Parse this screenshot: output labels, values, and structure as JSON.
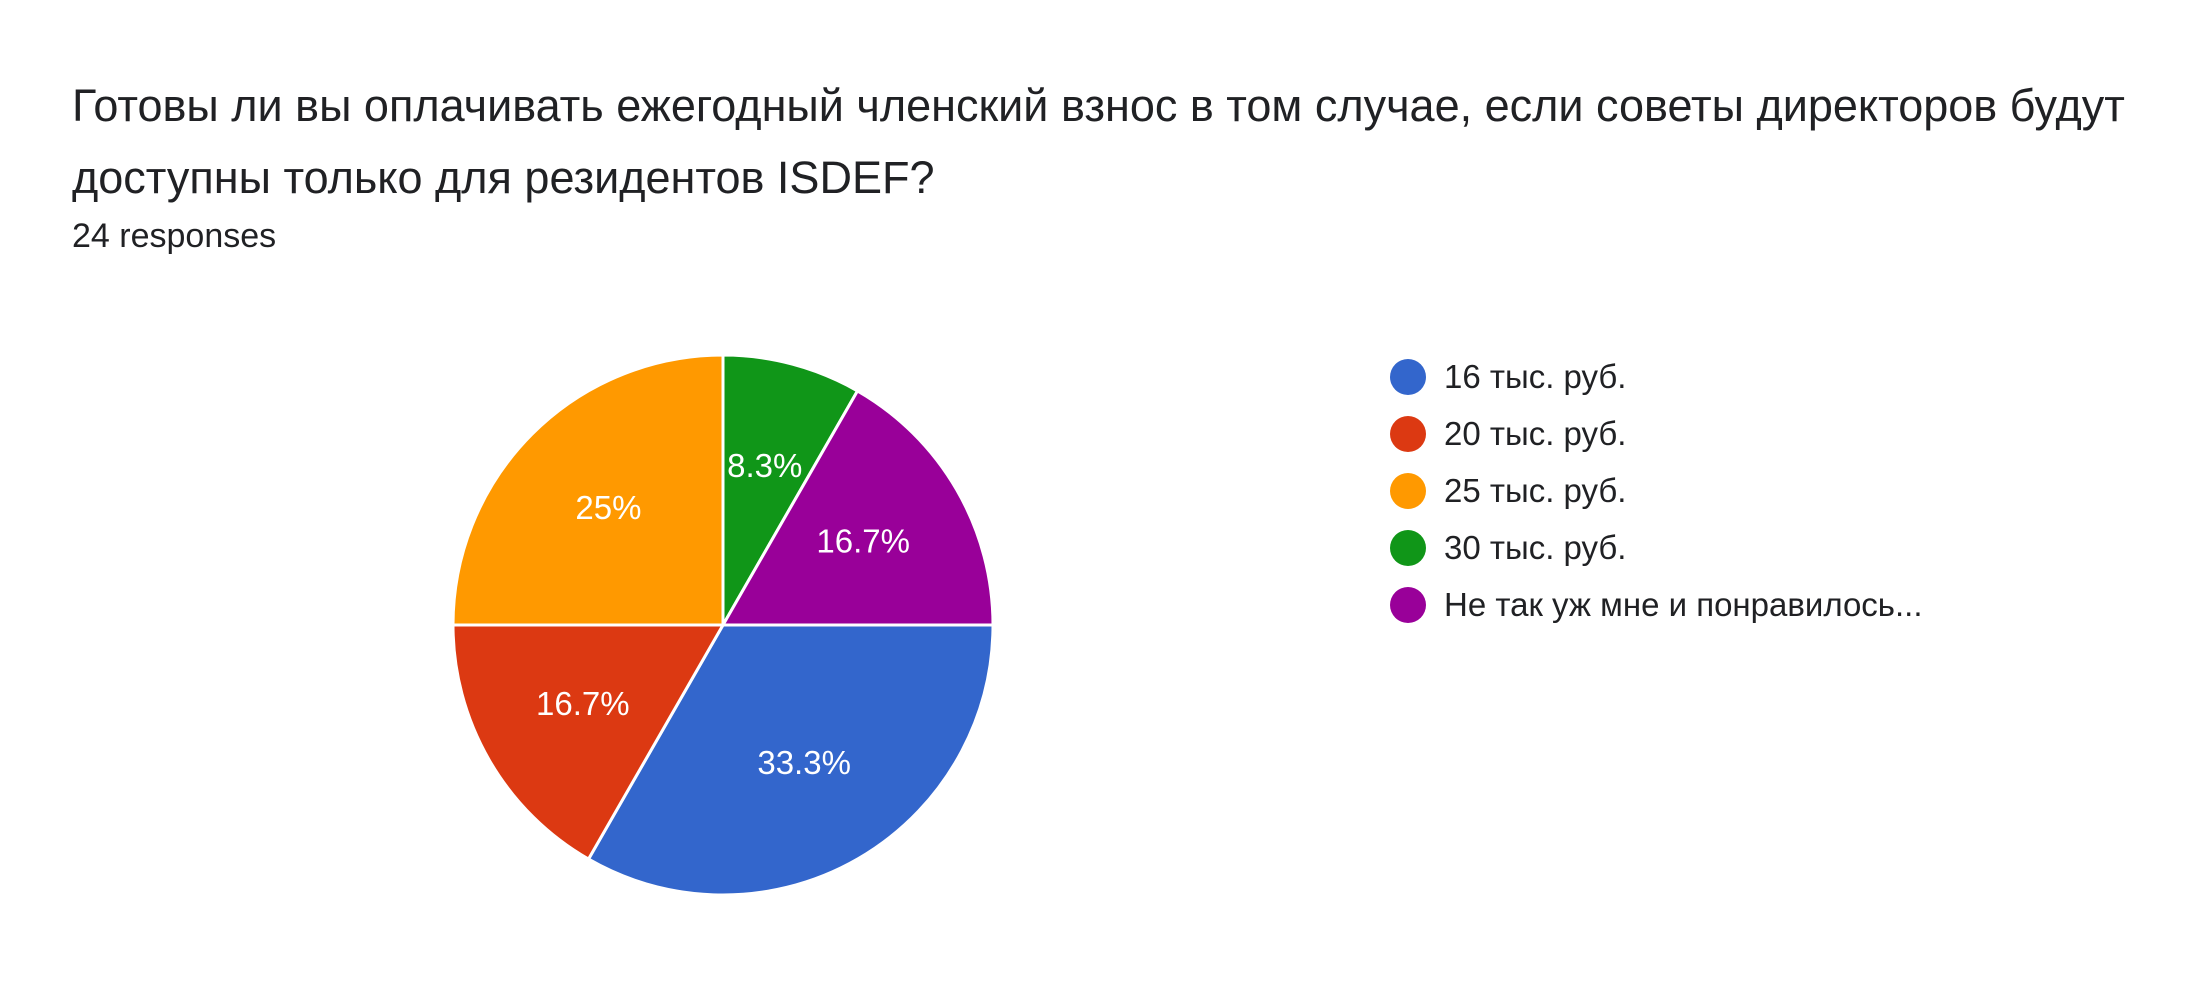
{
  "colors": {
    "blue": "#3366CC",
    "red": "#DC3912",
    "orange": "#FF9900",
    "green": "#109618",
    "purple": "#990099"
  },
  "chart_data": {
    "type": "pie",
    "title": "Готовы ли вы оплачивать ежегодный членский взнос в том случае, если советы директоров будут доступны только для резидентов ISDEF?",
    "subtitle": "24 responses",
    "legend_position": "right",
    "start_angle": "12 o'clock, clockwise",
    "slices": [
      {
        "label": "16 тыс. руб.",
        "value": 33.3,
        "display": "33.3%",
        "color": "#3366CC",
        "legend_order": 0
      },
      {
        "label": "20 тыс. руб.",
        "value": 16.7,
        "display": "16.7%",
        "color": "#DC3912",
        "legend_order": 1
      },
      {
        "label": "25 тыс. руб.",
        "value": 25,
        "display": "25%",
        "color": "#FF9900",
        "legend_order": 2
      },
      {
        "label": "30 тыс. руб.",
        "value": 8.3,
        "display": "8.3%",
        "color": "#109618",
        "legend_order": 3
      },
      {
        "label": "Не так уж мне и понравилось...",
        "value": 16.7,
        "display": "16.7%",
        "color": "#990099",
        "legend_order": 4
      }
    ],
    "draw_order": [
      3,
      4,
      0,
      1,
      2
    ]
  }
}
